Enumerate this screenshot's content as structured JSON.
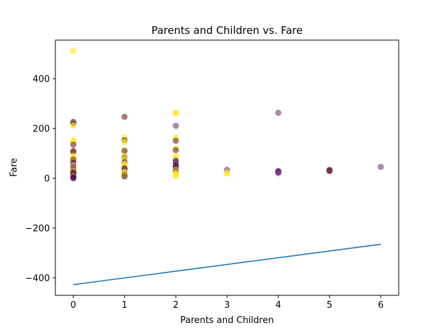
{
  "chart_data": {
    "type": "scatter",
    "title": "Parents and Children vs. Fare",
    "xlabel": "Parents and Children",
    "ylabel": "Fare",
    "xlim": [
      -0.35,
      6.35
    ],
    "ylim": [
      -470,
      555
    ],
    "xticks": [
      0,
      1,
      2,
      3,
      4,
      5,
      6
    ],
    "yticks": [
      -400,
      -200,
      0,
      200,
      400
    ],
    "xtick_labels": [
      "0",
      "1",
      "2",
      "3",
      "4",
      "5",
      "6"
    ],
    "ytick_labels": [
      "−400",
      "−200",
      "0",
      "200",
      "400"
    ],
    "grid": false,
    "colors": {
      "yellow": "#fde725",
      "purple": "#440154",
      "mauve": "#7a4a80",
      "brown": "#6e3a3a",
      "line": "#1f77b4"
    },
    "points": [
      {
        "x": 0,
        "y": 512,
        "c": "yellow"
      },
      {
        "x": 0,
        "y": 227,
        "c": "brown"
      },
      {
        "x": 0,
        "y": 221,
        "c": "brown"
      },
      {
        "x": 0,
        "y": 212,
        "c": "yellow"
      },
      {
        "x": 0,
        "y": 153,
        "c": "yellow"
      },
      {
        "x": 0,
        "y": 146,
        "c": "yellow"
      },
      {
        "x": 0,
        "y": 135,
        "c": "brown"
      },
      {
        "x": 0,
        "y": 110,
        "c": "brown"
      },
      {
        "x": 0,
        "y": 106,
        "c": "brown"
      },
      {
        "x": 0,
        "y": 90,
        "c": "yellow"
      },
      {
        "x": 0,
        "y": 83,
        "c": "yellow"
      },
      {
        "x": 0,
        "y": 78,
        "c": "yellow"
      },
      {
        "x": 0,
        "y": 75,
        "c": "brown"
      },
      {
        "x": 0,
        "y": 61,
        "c": "purple"
      },
      {
        "x": 0,
        "y": 55,
        "c": "brown"
      },
      {
        "x": 0,
        "y": 52,
        "c": "yellow"
      },
      {
        "x": 0,
        "y": 47,
        "c": "mauve"
      },
      {
        "x": 0,
        "y": 35,
        "c": "brown"
      },
      {
        "x": 0,
        "y": 30,
        "c": "yellow"
      },
      {
        "x": 0,
        "y": 26,
        "c": "brown"
      },
      {
        "x": 0,
        "y": 20,
        "c": "purple"
      },
      {
        "x": 0,
        "y": 15,
        "c": "brown"
      },
      {
        "x": 0,
        "y": 10,
        "c": "purple"
      },
      {
        "x": 0,
        "y": 8,
        "c": "yellow"
      },
      {
        "x": 0,
        "y": 5,
        "c": "purple"
      },
      {
        "x": 0,
        "y": 0,
        "c": "purple"
      },
      {
        "x": 1,
        "y": 247,
        "c": "brown"
      },
      {
        "x": 1,
        "y": 164,
        "c": "yellow"
      },
      {
        "x": 1,
        "y": 153,
        "c": "brown"
      },
      {
        "x": 1,
        "y": 146,
        "c": "yellow"
      },
      {
        "x": 1,
        "y": 113,
        "c": "yellow"
      },
      {
        "x": 1,
        "y": 110,
        "c": "brown"
      },
      {
        "x": 1,
        "y": 90,
        "c": "yellow"
      },
      {
        "x": 1,
        "y": 83,
        "c": "brown"
      },
      {
        "x": 1,
        "y": 79,
        "c": "yellow"
      },
      {
        "x": 1,
        "y": 65,
        "c": "brown"
      },
      {
        "x": 1,
        "y": 57,
        "c": "yellow"
      },
      {
        "x": 1,
        "y": 52,
        "c": "yellow"
      },
      {
        "x": 1,
        "y": 40,
        "c": "purple"
      },
      {
        "x": 1,
        "y": 33,
        "c": "brown"
      },
      {
        "x": 1,
        "y": 26,
        "c": "yellow"
      },
      {
        "x": 1,
        "y": 20,
        "c": "yellow"
      },
      {
        "x": 1,
        "y": 15,
        "c": "brown"
      },
      {
        "x": 1,
        "y": 11,
        "c": "yellow"
      },
      {
        "x": 1,
        "y": 7,
        "c": "brown"
      },
      {
        "x": 2,
        "y": 263,
        "c": "yellow"
      },
      {
        "x": 2,
        "y": 262,
        "c": "yellow"
      },
      {
        "x": 2,
        "y": 211,
        "c": "mauve"
      },
      {
        "x": 2,
        "y": 164,
        "c": "yellow"
      },
      {
        "x": 2,
        "y": 151,
        "c": "brown"
      },
      {
        "x": 2,
        "y": 120,
        "c": "yellow"
      },
      {
        "x": 2,
        "y": 113,
        "c": "brown"
      },
      {
        "x": 2,
        "y": 90,
        "c": "yellow"
      },
      {
        "x": 2,
        "y": 80,
        "c": "yellow"
      },
      {
        "x": 2,
        "y": 70,
        "c": "purple"
      },
      {
        "x": 2,
        "y": 60,
        "c": "brown"
      },
      {
        "x": 2,
        "y": 50,
        "c": "purple"
      },
      {
        "x": 2,
        "y": 41,
        "c": "purple"
      },
      {
        "x": 2,
        "y": 34,
        "c": "yellow"
      },
      {
        "x": 2,
        "y": 28,
        "c": "brown"
      },
      {
        "x": 2,
        "y": 22,
        "c": "yellow"
      },
      {
        "x": 2,
        "y": 15,
        "c": "yellow"
      },
      {
        "x": 2,
        "y": 10,
        "c": "yellow"
      },
      {
        "x": 3,
        "y": 34,
        "c": "mauve"
      },
      {
        "x": 3,
        "y": 22,
        "c": "yellow"
      },
      {
        "x": 3,
        "y": 19,
        "c": "yellow"
      },
      {
        "x": 4,
        "y": 263,
        "c": "mauve"
      },
      {
        "x": 4,
        "y": 29,
        "c": "purple"
      },
      {
        "x": 4,
        "y": 25,
        "c": "purple"
      },
      {
        "x": 4,
        "y": 21,
        "c": "mauve"
      },
      {
        "x": 5,
        "y": 34,
        "c": "brown"
      },
      {
        "x": 5,
        "y": 31,
        "c": "purple"
      },
      {
        "x": 5,
        "y": 29,
        "c": "brown"
      },
      {
        "x": 6,
        "y": 46,
        "c": "mauve"
      }
    ],
    "line": {
      "x": [
        0,
        6
      ],
      "y": [
        -427,
        -265
      ]
    }
  }
}
